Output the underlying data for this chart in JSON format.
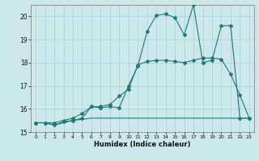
{
  "title": "",
  "xlabel": "Humidex (Indice chaleur)",
  "ylabel": "",
  "bg_color": "#cde8ec",
  "grid_color": "#aacdd4",
  "line_color": "#1e7a72",
  "xlim": [
    -0.5,
    23.5
  ],
  "ylim": [
    15.0,
    20.5
  ],
  "xticks": [
    0,
    1,
    2,
    3,
    4,
    5,
    6,
    7,
    8,
    9,
    10,
    11,
    12,
    13,
    14,
    15,
    16,
    17,
    18,
    19,
    20,
    21,
    22,
    23
  ],
  "yticks": [
    15,
    16,
    17,
    18,
    19,
    20
  ],
  "series1_x": [
    0,
    1,
    2,
    3,
    4,
    5,
    6,
    7,
    8,
    9,
    10,
    11,
    12,
    13,
    14,
    15,
    16,
    17,
    18,
    19,
    20,
    21,
    22,
    23
  ],
  "series1_y": [
    15.4,
    15.4,
    15.3,
    15.45,
    15.5,
    15.6,
    16.1,
    16.05,
    16.1,
    16.05,
    17.0,
    17.85,
    19.35,
    20.05,
    20.1,
    19.95,
    19.2,
    20.5,
    18.0,
    18.1,
    19.6,
    19.6,
    15.6,
    15.6
  ],
  "series2_x": [
    0,
    1,
    2,
    3,
    4,
    5,
    6,
    7,
    8,
    9,
    10,
    11,
    12,
    13,
    14,
    15,
    16,
    17,
    18,
    19,
    20,
    21,
    22,
    23
  ],
  "series2_y": [
    15.4,
    15.4,
    15.3,
    15.4,
    15.5,
    15.55,
    15.6,
    15.6,
    15.6,
    15.6,
    15.6,
    15.6,
    15.6,
    15.6,
    15.6,
    15.6,
    15.6,
    15.6,
    15.6,
    15.6,
    15.6,
    15.6,
    15.6,
    15.6
  ],
  "series3_x": [
    0,
    1,
    2,
    3,
    4,
    5,
    6,
    7,
    8,
    9,
    10,
    11,
    12,
    13,
    14,
    15,
    16,
    17,
    18,
    19,
    20,
    21,
    22,
    23
  ],
  "series3_y": [
    15.4,
    15.4,
    15.4,
    15.5,
    15.6,
    15.8,
    16.1,
    16.1,
    16.2,
    16.55,
    16.85,
    17.9,
    18.05,
    18.1,
    18.1,
    18.05,
    18.0,
    18.1,
    18.2,
    18.2,
    18.15,
    17.5,
    16.6,
    15.6
  ]
}
